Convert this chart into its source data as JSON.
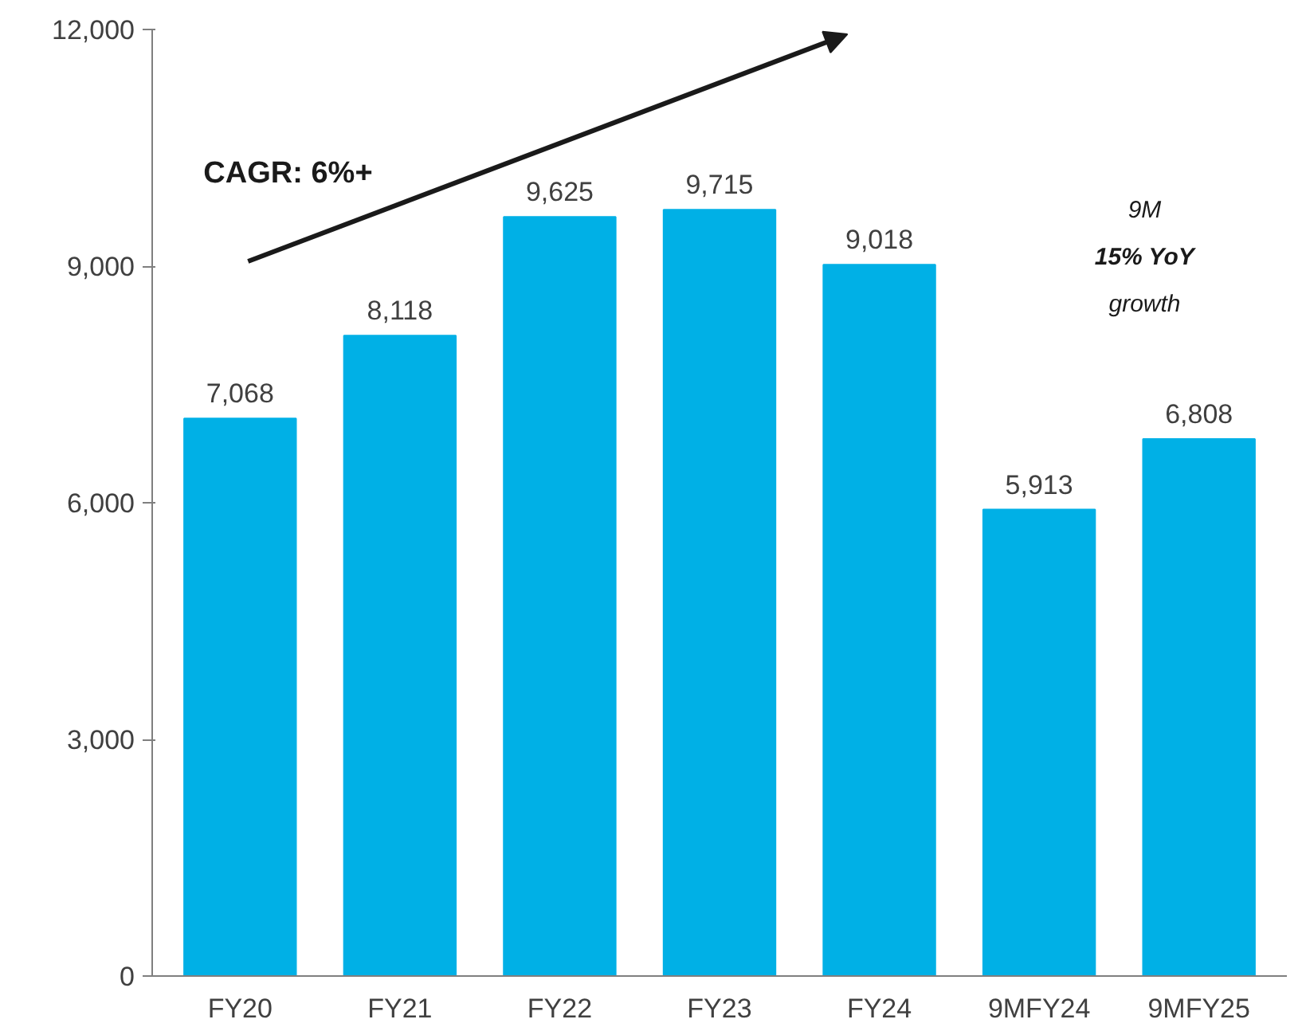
{
  "chart_data": {
    "type": "bar",
    "categories": [
      "FY20",
      "FY21",
      "FY22",
      "FY23",
      "FY24",
      "9MFY24",
      "9MFY25"
    ],
    "values": [
      7068,
      8118,
      9625,
      9715,
      9018,
      5913,
      6808
    ],
    "color": "#00b0e6",
    "ylim": [
      0,
      12000
    ],
    "yticks": [
      {
        "value": 0,
        "label": "0"
      },
      {
        "value": 3000,
        "label": "3,000"
      },
      {
        "value": 6000,
        "label": "6,000"
      },
      {
        "value": 9000,
        "label": "9,000"
      },
      {
        "value": 12000,
        "label": "12,000"
      }
    ],
    "value_labels": [
      "7,068",
      "8,118",
      "9,625",
      "9,715",
      "9,018",
      "5,913",
      "6,808"
    ],
    "grid": false,
    "annotations": [
      "CAGR: 6%+",
      "9M",
      "15% YoY",
      "growth"
    ]
  }
}
